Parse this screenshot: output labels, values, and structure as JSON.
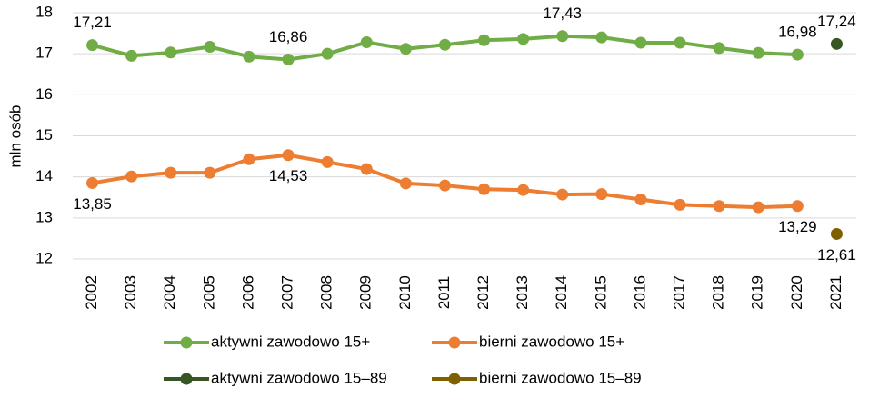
{
  "chart_data": {
    "type": "line",
    "y_label": "mln osób",
    "categories": [
      "2002",
      "2003",
      "2004",
      "2005",
      "2006",
      "2007",
      "2008",
      "2009",
      "2010",
      "2011",
      "2012",
      "2013",
      "2014",
      "2015",
      "2016",
      "2017",
      "2018",
      "2019",
      "2020",
      "2021"
    ],
    "series": [
      {
        "name": "aktywni zawodowo 15+",
        "color": "#70ad47",
        "values": [
          17.21,
          16.95,
          17.03,
          17.17,
          16.93,
          16.86,
          17.0,
          17.28,
          17.12,
          17.22,
          17.33,
          17.36,
          17.43,
          17.4,
          17.27,
          17.27,
          17.14,
          17.02,
          16.98,
          null
        ],
        "value_labels": [
          "17,21",
          null,
          null,
          null,
          null,
          "16,86",
          null,
          null,
          null,
          null,
          null,
          null,
          "17,43",
          null,
          null,
          null,
          null,
          null,
          "16,98",
          null
        ]
      },
      {
        "name": "bierni zawodowo 15+",
        "color": "#ed7d31",
        "values": [
          13.85,
          14.01,
          14.1,
          14.1,
          14.43,
          14.53,
          14.36,
          14.19,
          13.84,
          13.79,
          13.7,
          13.68,
          13.57,
          13.58,
          13.45,
          13.32,
          13.29,
          13.26,
          13.29,
          null
        ],
        "value_labels": [
          "13,85",
          null,
          null,
          null,
          null,
          "14,53",
          null,
          null,
          null,
          null,
          null,
          null,
          null,
          null,
          null,
          null,
          null,
          null,
          "13,29",
          null
        ]
      },
      {
        "name": "aktywni zawodowo 15–89",
        "color": "#375623",
        "values": [
          null,
          null,
          null,
          null,
          null,
          null,
          null,
          null,
          null,
          null,
          null,
          null,
          null,
          null,
          null,
          null,
          null,
          null,
          null,
          17.24
        ],
        "value_labels": [
          null,
          null,
          null,
          null,
          null,
          null,
          null,
          null,
          null,
          null,
          null,
          null,
          null,
          null,
          null,
          null,
          null,
          null,
          null,
          "17,24"
        ]
      },
      {
        "name": "bierni zawodowo 15–89",
        "color": "#7f6000",
        "values": [
          null,
          null,
          null,
          null,
          null,
          null,
          null,
          null,
          null,
          null,
          null,
          null,
          null,
          null,
          null,
          null,
          null,
          null,
          null,
          12.61
        ],
        "value_labels": [
          null,
          null,
          null,
          null,
          null,
          null,
          null,
          null,
          null,
          null,
          null,
          null,
          null,
          null,
          null,
          null,
          null,
          null,
          null,
          "12,61"
        ]
      }
    ],
    "ylim": [
      12,
      18
    ],
    "yticks": [
      12,
      13,
      14,
      15,
      16,
      17,
      18
    ],
    "grid": true
  }
}
